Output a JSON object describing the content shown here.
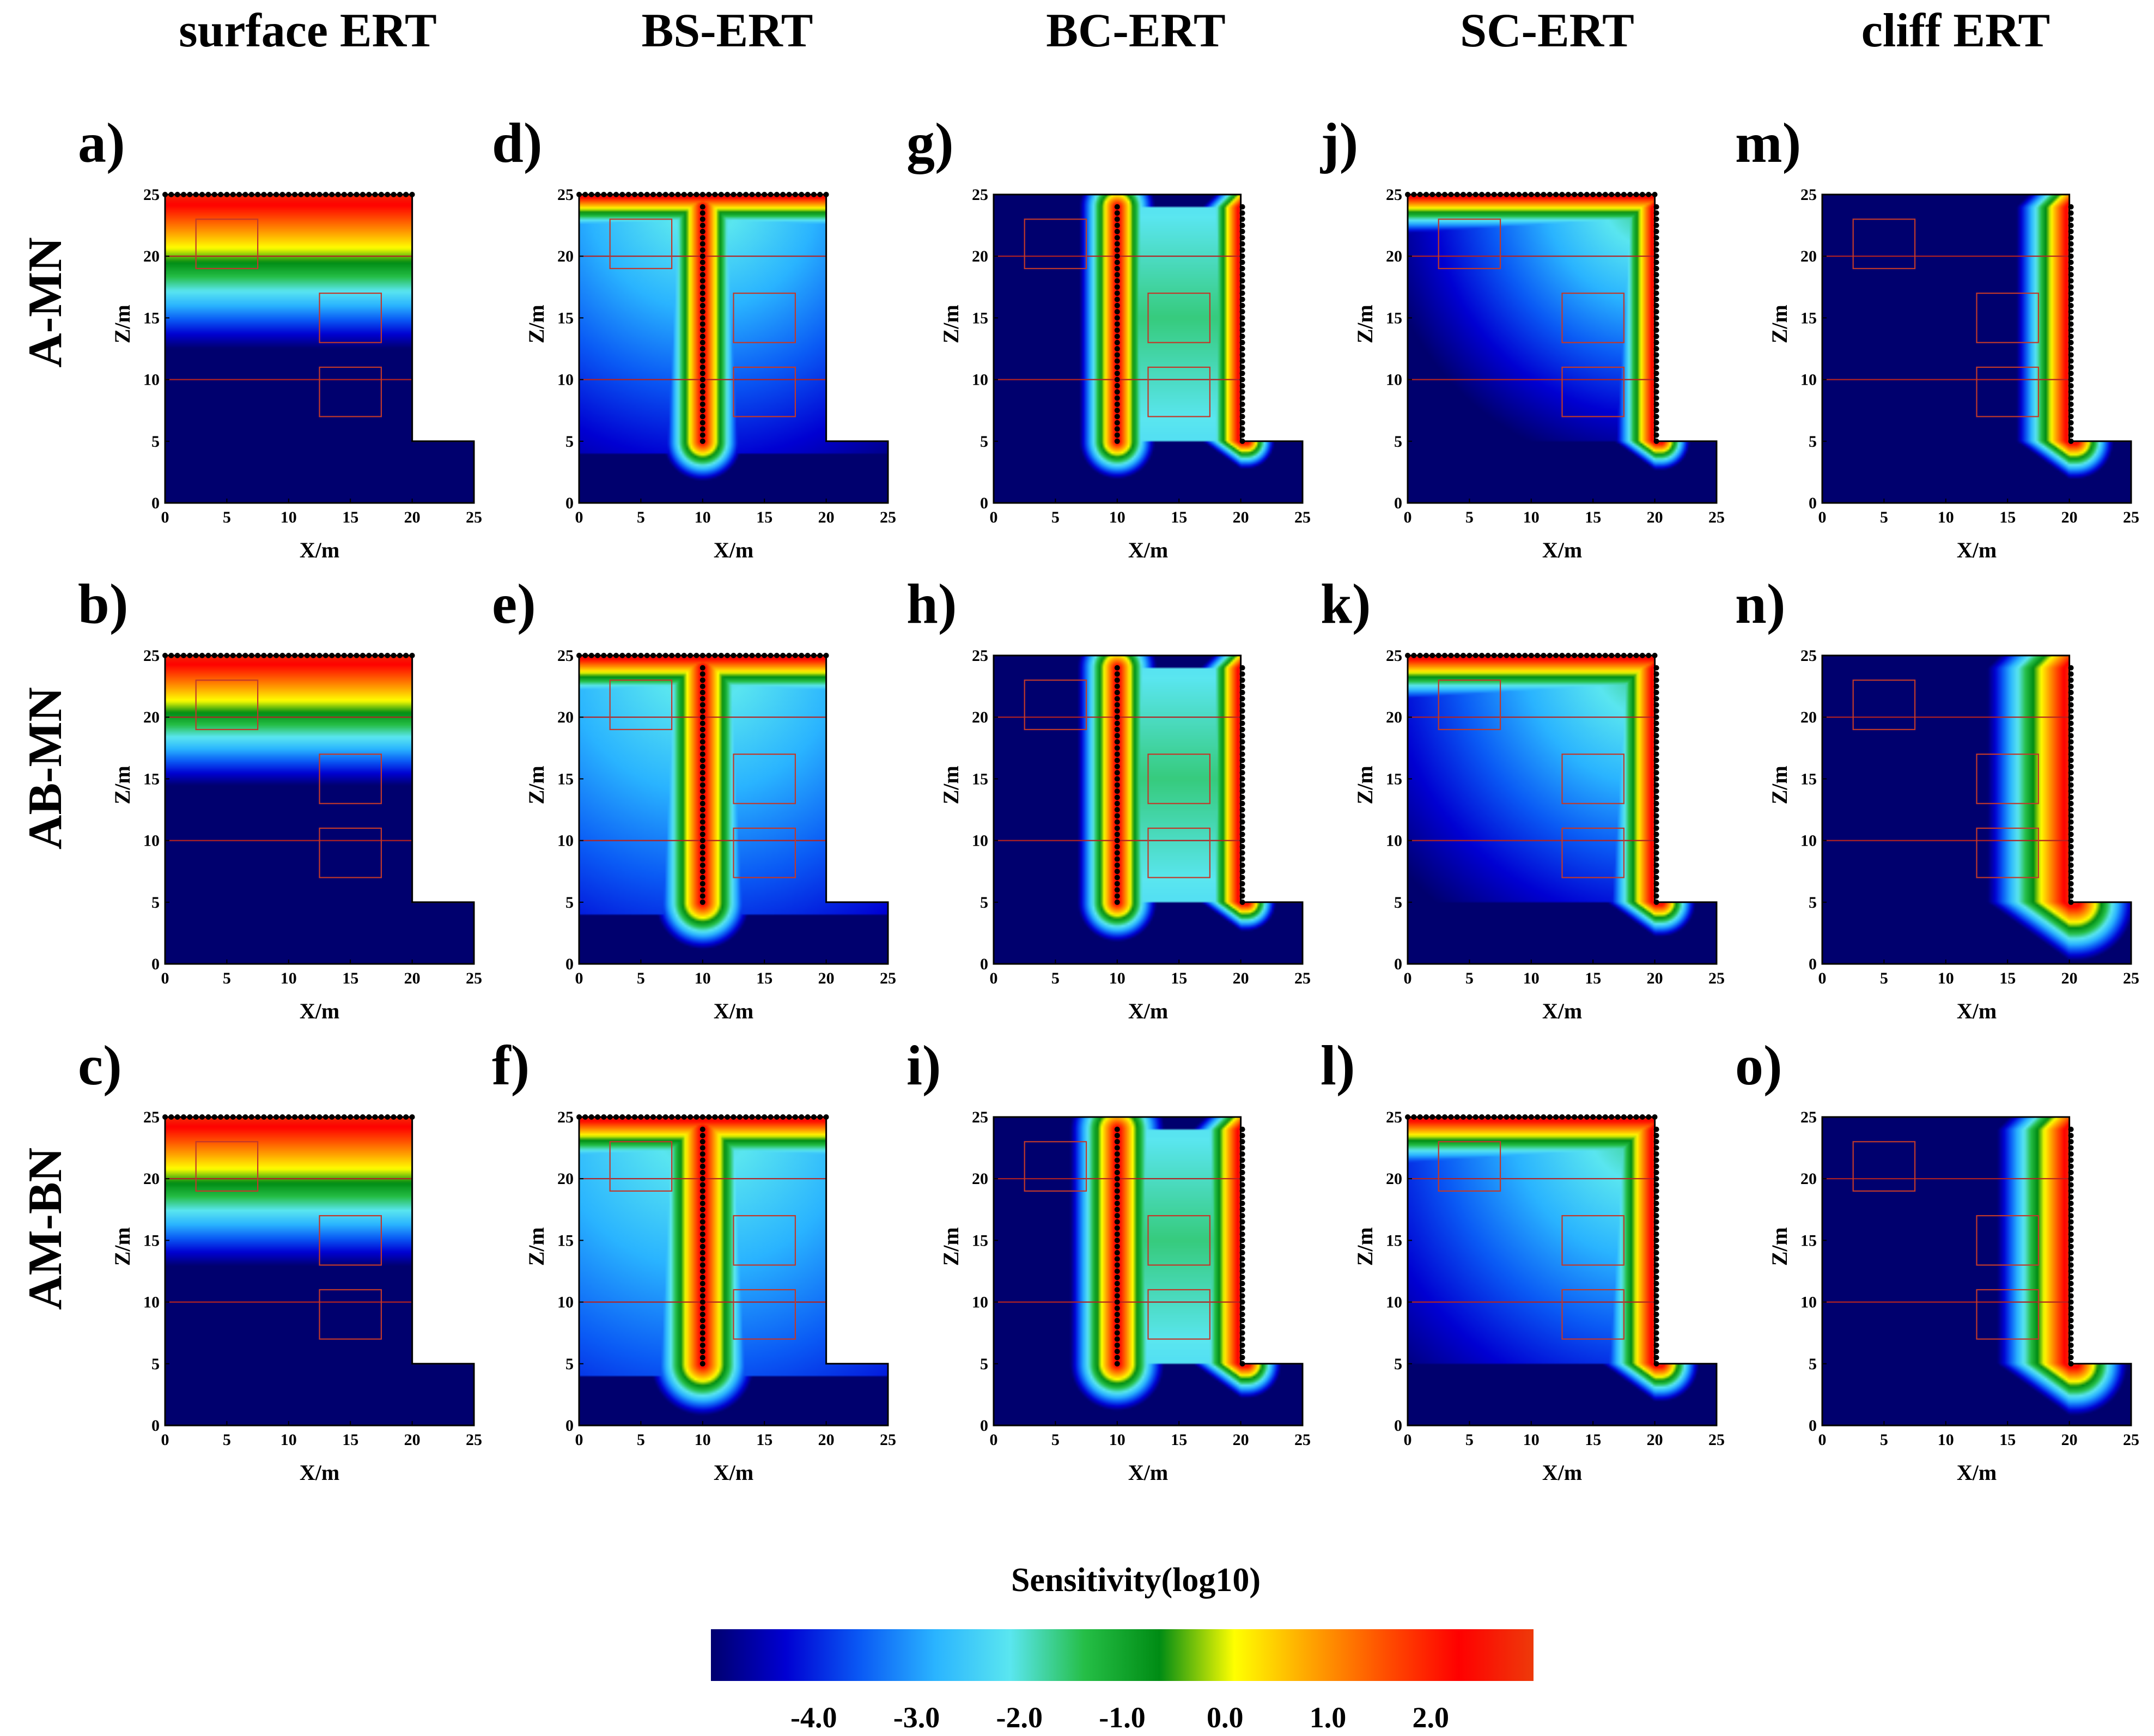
{
  "figure": {
    "column_titles": [
      "surface ERT",
      "BS-ERT",
      "BC-ERT",
      "SC-ERT",
      "cliff ERT"
    ],
    "row_labels": [
      "A-MN",
      "AB-MN",
      "AM-BN"
    ]
  },
  "chart_data": {
    "type": "heatmap",
    "description_of_grid": "5 electrode configurations (columns) x 3 measurement arrays (rows) of 2D sensitivity distributions",
    "xlabel": "X/m",
    "ylabel": "Z/m",
    "xlim": [
      0,
      25
    ],
    "ylim": [
      0,
      25
    ],
    "xticks": [
      "0",
      "5",
      "10",
      "15",
      "20",
      "25"
    ],
    "yticks": [
      "0",
      "5",
      "10",
      "15",
      "20",
      "25"
    ],
    "domain_outline": [
      [
        0,
        25
      ],
      [
        20,
        25
      ],
      [
        20,
        5
      ],
      [
        25,
        5
      ],
      [
        25,
        0
      ],
      [
        0,
        0
      ]
    ],
    "anomaly_boxes": [
      {
        "x": [
          2.5,
          7.5
        ],
        "z": [
          19,
          23
        ]
      },
      {
        "x": [
          12.5,
          17.5
        ],
        "z": [
          13,
          17
        ]
      },
      {
        "x": [
          12.5,
          17.5
        ],
        "z": [
          7,
          11
        ]
      }
    ],
    "interface_lines": [
      20,
      10
    ],
    "panels": [
      {
        "letter": "a)",
        "row": "A-MN",
        "column": "surface ERT",
        "electrodes": [
          "surface"
        ],
        "decay": 1.6
      },
      {
        "letter": "b)",
        "row": "AB-MN",
        "column": "surface ERT",
        "electrodes": [
          "surface"
        ],
        "decay": 1.35
      },
      {
        "letter": "c)",
        "row": "AM-BN",
        "column": "surface ERT",
        "electrodes": [
          "surface"
        ],
        "decay": 1.55
      },
      {
        "letter": "d)",
        "row": "A-MN",
        "column": "BS-ERT",
        "electrodes": [
          "surface",
          "borehole"
        ],
        "decay": 0.42
      },
      {
        "letter": "e)",
        "row": "AB-MN",
        "column": "BS-ERT",
        "electrodes": [
          "surface",
          "borehole"
        ],
        "decay": 0.5
      },
      {
        "letter": "f)",
        "row": "AM-BN",
        "column": "BS-ERT",
        "electrodes": [
          "surface",
          "borehole"
        ],
        "decay": 0.55
      },
      {
        "letter": "g)",
        "row": "A-MN",
        "column": "BC-ERT",
        "electrodes": [
          "borehole",
          "cliff"
        ],
        "decay": 0.4
      },
      {
        "letter": "h)",
        "row": "AB-MN",
        "column": "BC-ERT",
        "electrodes": [
          "borehole",
          "cliff"
        ],
        "decay": 0.42
      },
      {
        "letter": "i)",
        "row": "AM-BN",
        "column": "BC-ERT",
        "electrodes": [
          "borehole",
          "cliff"
        ],
        "decay": 0.5
      },
      {
        "letter": "j)",
        "row": "A-MN",
        "column": "SC-ERT",
        "electrodes": [
          "surface",
          "cliff"
        ],
        "decay": 0.42
      },
      {
        "letter": "k)",
        "row": "AB-MN",
        "column": "SC-ERT",
        "electrodes": [
          "surface",
          "cliff"
        ],
        "decay": 0.5
      },
      {
        "letter": "l)",
        "row": "AM-BN",
        "column": "SC-ERT",
        "electrodes": [
          "surface",
          "cliff"
        ],
        "decay": 0.55
      },
      {
        "letter": "m)",
        "row": "A-MN",
        "column": "cliff ERT",
        "electrodes": [
          "cliff"
        ],
        "decay": 0.55
      },
      {
        "letter": "n)",
        "row": "AB-MN",
        "column": "cliff ERT",
        "electrodes": [
          "cliff"
        ],
        "decay": 0.85
      },
      {
        "letter": "o)",
        "row": "AM-BN",
        "column": "cliff ERT",
        "electrodes": [
          "cliff"
        ],
        "decay": 0.75
      }
    ],
    "colorbar": {
      "title": "Sensitivity(log10)",
      "range": [
        -5.0,
        3.0
      ],
      "tick_labels": [
        "-4.0",
        "-3.0",
        "-2.0",
        "-1.0",
        "0.0",
        "1.0",
        "2.0"
      ],
      "colors": [
        "#00006e",
        "#0000d2",
        "#0a5af5",
        "#2ab4ff",
        "#5ae6f0",
        "#25be46",
        "#008c14",
        "#ffff00",
        "#ffa500",
        "#ff5000",
        "#ff0000",
        "#ee3a0a"
      ]
    }
  },
  "colors": {
    "box_line": "#c0392b",
    "interface_line": "#b22222",
    "electrode": "#000000"
  }
}
